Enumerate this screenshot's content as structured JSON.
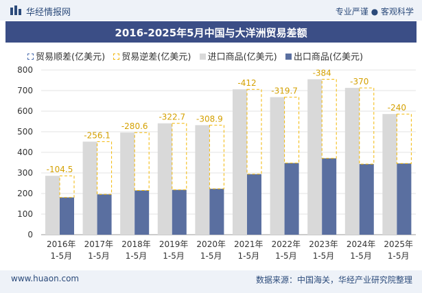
{
  "header": {
    "brand": "华经情报网",
    "slogan": "专业严谨 ● 客观科学"
  },
  "chart_data": {
    "type": "bar",
    "title": "2016-2025年5月中国与大洋洲贸易差额",
    "categories": [
      "2016年\n1-5月",
      "2017年\n1-5月",
      "2018年\n1-5月",
      "2019年\n1-5月",
      "2020年\n1-5月",
      "2021年\n1-5月",
      "2022年\n1-5月",
      "2023年\n1-5月",
      "2024年\n1-5月",
      "2025年\n1-5月"
    ],
    "series": [
      {
        "name": "贸易顺差(亿美元)",
        "values": [
          null,
          null,
          null,
          null,
          null,
          null,
          null,
          null,
          null,
          null
        ],
        "color": "#4a6cae"
      },
      {
        "name": "贸易逆差(亿美元)",
        "values": [
          -104.5,
          -256.1,
          -280.6,
          -322.7,
          -308.9,
          -412,
          -319.7,
          -384,
          -370,
          -240
        ],
        "color": "#f2b600"
      },
      {
        "name": "进口商品(亿美元)",
        "values": [
          286,
          452,
          496,
          541,
          532,
          706,
          668,
          755,
          713,
          586
        ],
        "color": "#d9d9d9"
      },
      {
        "name": "出口商品(亿美元)",
        "values": [
          181,
          196,
          215,
          218,
          223,
          294,
          348,
          371,
          343,
          346
        ],
        "color": "#5a6fa0"
      }
    ],
    "deficit_labels": [
      "-104.5",
      "-256.1",
      "-280.6",
      "-322.7",
      "-308.9",
      "-412",
      "-319.7",
      "-384",
      "-370",
      "-240"
    ],
    "ylim": [
      0,
      800
    ],
    "yticks": [
      0,
      100,
      200,
      300,
      400,
      500,
      600,
      700,
      800
    ],
    "grid": true,
    "legend_position": "top-left"
  },
  "footer": {
    "website": "www.huaon.com",
    "source": "数据来源：中国海关，华经产业研究院整理"
  }
}
